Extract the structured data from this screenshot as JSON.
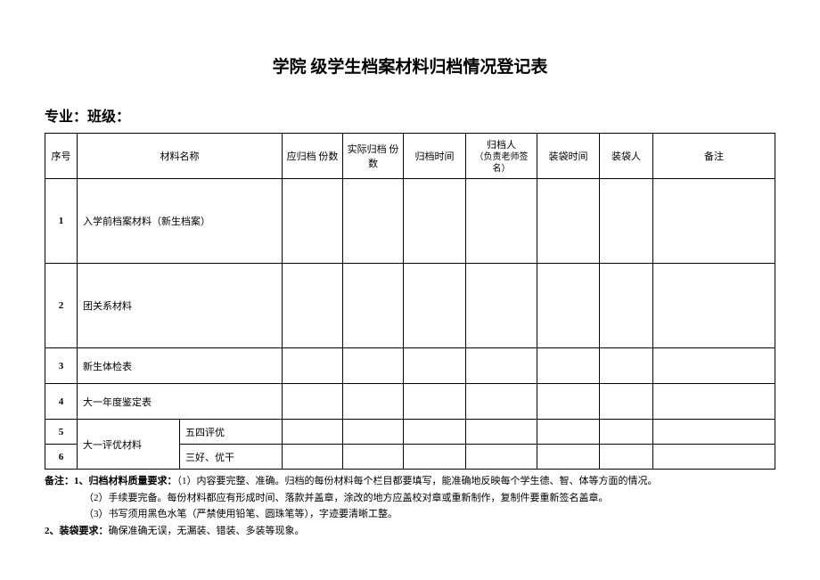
{
  "title": "学院 级学生档案材料归档情况登记表",
  "subtitle": "专业：班级：",
  "headers": {
    "seq": "序号",
    "material_name": "材料名称",
    "should_archive": "应归档 份数",
    "actual_archive": "实际归档 份数",
    "archive_time": "归档时间",
    "archive_person": "归档人",
    "archive_person_sub": "（负责老师签名）",
    "bag_time": "装袋时间",
    "bag_person": "装袋人",
    "remark": "备注"
  },
  "rows": {
    "r1": {
      "seq": "1",
      "name": "入学前档案材料（新生档案）"
    },
    "r2": {
      "seq": "2",
      "name": "团关系材料"
    },
    "r3": {
      "seq": "3",
      "name": "新生体检表"
    },
    "r4": {
      "seq": "4",
      "name": "大一年度鉴定表"
    },
    "r5": {
      "seq": "5",
      "name_group": "大一评优材料",
      "name_sub": "五四评优"
    },
    "r6": {
      "seq": "6",
      "name_sub": "三好、优干"
    }
  },
  "notes": {
    "line1_label": "备注：",
    "line1_bold": "1、归档材料质量要求：",
    "line1_text": "（1）内容要完整、准确。归档的每份材料每个栏目都要填写，能准确地反映每个学生德、智、体等方面的情况。",
    "line2": "（2）手续要完备。每份材料都应有形成时间、落款并盖章，涂改的地方应盖校对章或重新制作，复制件要重新签名盖章。",
    "line3": "（3）书写须用黑色水笔（严禁使用铅笔、圆珠笔等），字迹要清晰工整。",
    "line4_bold": "2、装袋要求：",
    "line4_text": "确保准确无误，无漏装、错装、多装等现象。"
  }
}
